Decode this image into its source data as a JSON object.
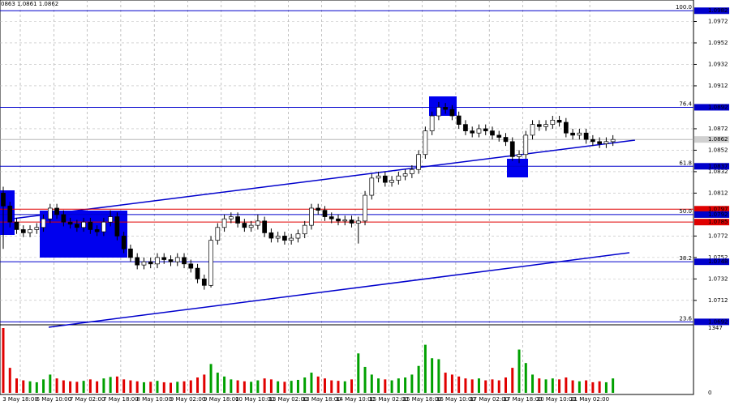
{
  "chart_data": {
    "type": "candlestick",
    "header": "0863 1.0861 1.0862",
    "ylim": [
      1.069,
      1.0992
    ],
    "yticks": [
      1.0972,
      1.0952,
      1.0932,
      1.0912,
      1.0872,
      1.0852,
      1.0832,
      1.0812,
      1.0772,
      1.0752,
      1.0732,
      1.0712
    ],
    "grid": true,
    "up_color": "#ffffff",
    "down_color": "#000000",
    "current_price": 1.0862,
    "levels": [
      {
        "fib": "100.0",
        "value": 1.0982,
        "color": "#0000cc"
      },
      {
        "fib": "76.4",
        "value": 1.0892,
        "color": "#0000cc"
      },
      {
        "fib": "61.8",
        "value": 1.0837,
        "color": "#0000cc"
      },
      {
        "value": 1.0797,
        "color": "#e00000"
      },
      {
        "fib": "50.0",
        "value": 1.0792,
        "color": "#0000cc"
      },
      {
        "value": 1.0785,
        "color": "#e00000"
      },
      {
        "fib": "38.2",
        "value": 1.0748,
        "color": "#0000cc"
      },
      {
        "fib": "23.6",
        "value": 1.0692,
        "color": "#0000cc"
      }
    ],
    "xlabels": [
      "3 May 18:00",
      "6 May 10:00",
      "7 May 02:00",
      "7 May 18:00",
      "8 May 10:00",
      "9 May 02:00",
      "9 May 18:00",
      "10 May 10:00",
      "13 May 02:00",
      "13 May 18:00",
      "14 May 10:00",
      "15 May 02:00",
      "15 May 18:00",
      "16 May 10:00",
      "17 May 02:00",
      "17 May 18:00",
      "20 May 10:00",
      "21 May 02:00"
    ],
    "ohlc": [
      [
        1.0812,
        1.0818,
        1.076,
        1.08
      ],
      [
        1.08,
        1.0804,
        1.078,
        1.0785
      ],
      [
        1.0785,
        1.0789,
        1.0774,
        1.0778
      ],
      [
        1.0778,
        1.0782,
        1.0771,
        1.0775
      ],
      [
        1.0775,
        1.0782,
        1.0771,
        1.0778
      ],
      [
        1.0778,
        1.0784,
        1.0774,
        1.078
      ],
      [
        1.078,
        1.0792,
        1.0776,
        1.0788
      ],
      [
        1.0788,
        1.0802,
        1.0784,
        1.0798
      ],
      [
        1.0798,
        1.0802,
        1.0788,
        1.0792
      ],
      [
        1.0792,
        1.0796,
        1.0781,
        1.0785
      ],
      [
        1.0785,
        1.0789,
        1.0779,
        1.0783
      ],
      [
        1.0783,
        1.0787,
        1.0776,
        1.078
      ],
      [
        1.078,
        1.0789,
        1.0776,
        1.0785
      ],
      [
        1.0785,
        1.0789,
        1.0774,
        1.0778
      ],
      [
        1.0778,
        1.0782,
        1.0772,
        1.0776
      ],
      [
        1.0776,
        1.0789,
        1.0772,
        1.0785
      ],
      [
        1.0785,
        1.0796,
        1.0781,
        1.079
      ],
      [
        1.079,
        1.0794,
        1.0768,
        1.0772
      ],
      [
        1.0772,
        1.0776,
        1.0756,
        1.076
      ],
      [
        1.076,
        1.0764,
        1.0748,
        1.0752
      ],
      [
        1.0752,
        1.0756,
        1.0741,
        1.0745
      ],
      [
        1.0745,
        1.0752,
        1.0741,
        1.0748
      ],
      [
        1.0748,
        1.0752,
        1.0742,
        1.0746
      ],
      [
        1.0746,
        1.0756,
        1.0742,
        1.0752
      ],
      [
        1.0752,
        1.0756,
        1.0746,
        1.075
      ],
      [
        1.075,
        1.0754,
        1.0744,
        1.0748
      ],
      [
        1.0748,
        1.0756,
        1.0744,
        1.0752
      ],
      [
        1.0752,
        1.0756,
        1.0742,
        1.0746
      ],
      [
        1.0746,
        1.075,
        1.0738,
        1.0742
      ],
      [
        1.0742,
        1.0746,
        1.0728,
        1.0732
      ],
      [
        1.0732,
        1.0736,
        1.0722,
        1.0726
      ],
      [
        1.0726,
        1.0772,
        1.0724,
        1.0768
      ],
      [
        1.0768,
        1.0784,
        1.0764,
        1.078
      ],
      [
        1.078,
        1.0792,
        1.0776,
        1.0788
      ],
      [
        1.0788,
        1.0794,
        1.0784,
        1.079
      ],
      [
        1.079,
        1.0794,
        1.078,
        1.0784
      ],
      [
        1.0784,
        1.0788,
        1.0776,
        1.078
      ],
      [
        1.078,
        1.0786,
        1.0776,
        1.0782
      ],
      [
        1.0782,
        1.0792,
        1.0778,
        1.0786
      ],
      [
        1.0786,
        1.079,
        1.0771,
        1.0775
      ],
      [
        1.0775,
        1.0779,
        1.0766,
        1.077
      ],
      [
        1.077,
        1.0776,
        1.0766,
        1.0772
      ],
      [
        1.0772,
        1.0776,
        1.0764,
        1.0768
      ],
      [
        1.0768,
        1.0774,
        1.0764,
        1.077
      ],
      [
        1.077,
        1.0778,
        1.0766,
        1.0774
      ],
      [
        1.0774,
        1.0786,
        1.077,
        1.0782
      ],
      [
        1.0782,
        1.0802,
        1.0778,
        1.0798
      ],
      [
        1.0798,
        1.0802,
        1.0792,
        1.0796
      ],
      [
        1.0796,
        1.08,
        1.0786,
        1.079
      ],
      [
        1.079,
        1.0794,
        1.0784,
        1.0788
      ],
      [
        1.0788,
        1.0792,
        1.0782,
        1.0786
      ],
      [
        1.0786,
        1.0791,
        1.0782,
        1.0787
      ],
      [
        1.0787,
        1.0791,
        1.078,
        1.0784
      ],
      [
        1.0784,
        1.079,
        1.0765,
        1.0786
      ],
      [
        1.0786,
        1.0814,
        1.0782,
        1.081
      ],
      [
        1.081,
        1.083,
        1.0806,
        1.0826
      ],
      [
        1.0826,
        1.0832,
        1.0822,
        1.0828
      ],
      [
        1.0828,
        1.0832,
        1.0818,
        1.0822
      ],
      [
        1.0822,
        1.0828,
        1.0818,
        1.0824
      ],
      [
        1.0824,
        1.0832,
        1.082,
        1.0828
      ],
      [
        1.0828,
        1.0834,
        1.0824,
        1.083
      ],
      [
        1.083,
        1.0838,
        1.0826,
        1.0834
      ],
      [
        1.0834,
        1.0852,
        1.083,
        1.0848
      ],
      [
        1.0848,
        1.0874,
        1.0844,
        1.087
      ],
      [
        1.087,
        1.0888,
        1.0866,
        1.0884
      ],
      [
        1.0884,
        1.0897,
        1.088,
        1.0892
      ],
      [
        1.0892,
        1.0896,
        1.0886,
        1.089
      ],
      [
        1.089,
        1.0894,
        1.088,
        1.0884
      ],
      [
        1.0884,
        1.0888,
        1.0872,
        1.0876
      ],
      [
        1.0876,
        1.088,
        1.0866,
        1.087
      ],
      [
        1.087,
        1.0874,
        1.0864,
        1.0868
      ],
      [
        1.0868,
        1.0876,
        1.0864,
        1.0872
      ],
      [
        1.0872,
        1.0876,
        1.0866,
        1.087
      ],
      [
        1.087,
        1.0874,
        1.0862,
        1.0866
      ],
      [
        1.0866,
        1.087,
        1.086,
        1.0864
      ],
      [
        1.0864,
        1.0868,
        1.0856,
        1.086
      ],
      [
        1.086,
        1.0864,
        1.0842,
        1.0846
      ],
      [
        1.0846,
        1.0852,
        1.084,
        1.0848
      ],
      [
        1.0848,
        1.087,
        1.0844,
        1.0866
      ],
      [
        1.0866,
        1.088,
        1.0862,
        1.0876
      ],
      [
        1.0876,
        1.088,
        1.087,
        1.0874
      ],
      [
        1.0874,
        1.088,
        1.087,
        1.0876
      ],
      [
        1.0876,
        1.0884,
        1.0872,
        1.088
      ],
      [
        1.088,
        1.0884,
        1.0874,
        1.0878
      ],
      [
        1.0878,
        1.0882,
        1.0864,
        1.0868
      ],
      [
        1.0868,
        1.0872,
        1.0862,
        1.0866
      ],
      [
        1.0866,
        1.0872,
        1.0862,
        1.0868
      ],
      [
        1.0868,
        1.0872,
        1.0858,
        1.0862
      ],
      [
        1.0862,
        1.0866,
        1.0856,
        1.086
      ],
      [
        1.086,
        1.0864,
        1.0854,
        1.0858
      ],
      [
        1.0858,
        1.0864,
        1.0854,
        1.086
      ],
      [
        1.086,
        1.0866,
        1.0856,
        1.0862
      ]
    ],
    "volume_ylim": [
      0,
      1347
    ],
    "volume_ticks": [
      0,
      1347
    ],
    "volume": [
      1347,
      520,
      300,
      260,
      240,
      220,
      280,
      380,
      300,
      260,
      240,
      230,
      250,
      280,
      240,
      300,
      330,
      340,
      280,
      260,
      240,
      220,
      230,
      250,
      220,
      210,
      230,
      240,
      260,
      320,
      380,
      600,
      420,
      340,
      280,
      260,
      240,
      230,
      260,
      300,
      280,
      240,
      230,
      250,
      270,
      320,
      420,
      340,
      300,
      260,
      250,
      240,
      280,
      820,
      540,
      380,
      300,
      280,
      260,
      300,
      320,
      380,
      560,
      1000,
      720,
      700,
      420,
      380,
      340,
      300,
      280,
      300,
      260,
      280,
      260,
      320,
      520,
      900,
      620,
      380,
      300,
      280,
      300,
      280,
      320,
      260,
      240,
      260,
      220,
      240,
      220,
      300
    ]
  }
}
